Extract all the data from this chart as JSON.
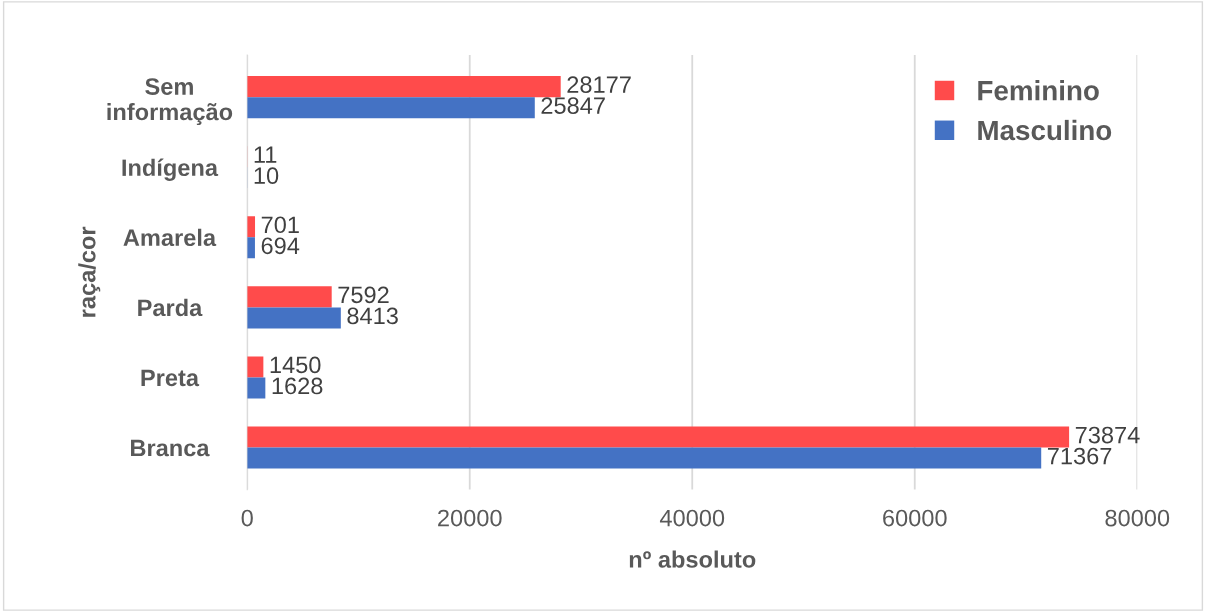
{
  "chart_data": {
    "type": "bar",
    "orientation": "horizontal",
    "xlabel": "nº absoluto",
    "ylabel": "raça/cor",
    "categories": [
      "Sem\ninformação",
      "Indígena",
      "Amarela",
      "Parda",
      "Preta",
      "Branca"
    ],
    "series": [
      {
        "name": "Feminino",
        "color": "#ff4b4b",
        "values": [
          28177,
          11,
          701,
          7592,
          1450,
          73874
        ]
      },
      {
        "name": "Masculino",
        "color": "#4472c4",
        "values": [
          25847,
          10,
          694,
          8413,
          1628,
          71367
        ]
      }
    ],
    "xlim": [
      0,
      80000
    ],
    "xticks": [
      0,
      20000,
      40000,
      60000,
      80000
    ],
    "grid": "x",
    "legend": "top right",
    "data_labels": true
  }
}
